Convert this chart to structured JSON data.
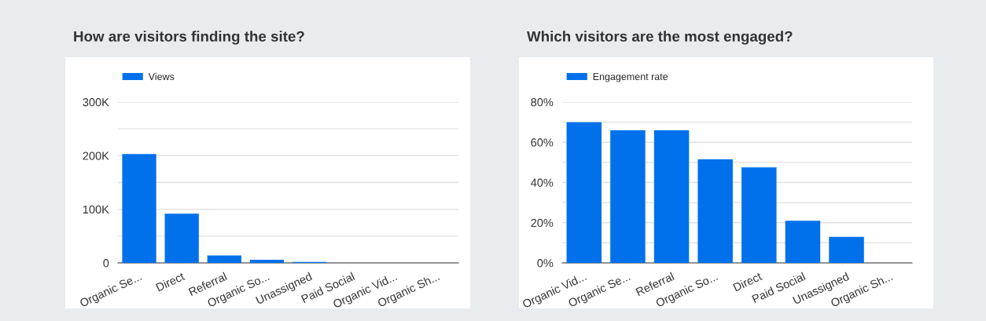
{
  "chart_data": [
    {
      "type": "bar",
      "title": "How are visitors finding the site?",
      "categories": [
        "Organic Se...",
        "Direct",
        "Referral",
        "Organic So...",
        "Unassigned",
        "Paid Social",
        "Organic Vid...",
        "Organic Sh..."
      ],
      "series": [
        {
          "name": "Views",
          "color": "#0071eb",
          "values": [
            203000,
            92000,
            14000,
            6000,
            2000,
            0,
            0,
            0
          ]
        }
      ],
      "ylim": [
        0,
        300000
      ],
      "yticks": [
        {
          "value": 0,
          "label": "0"
        },
        {
          "value": 50000,
          "label": null
        },
        {
          "value": 100000,
          "label": "100K"
        },
        {
          "value": 150000,
          "label": null
        },
        {
          "value": 200000,
          "label": "200K"
        },
        {
          "value": 250000,
          "label": null
        },
        {
          "value": 300000,
          "label": "300K"
        }
      ],
      "grid": "y",
      "legend": "top left"
    },
    {
      "type": "bar",
      "title": "Which visitors are the most engaged?",
      "categories": [
        "Organic Vid...",
        "Organic Se...",
        "Referral",
        "Organic So...",
        "Direct",
        "Paid Social",
        "Unassigned",
        "Organic Sh..."
      ],
      "series": [
        {
          "name": "Engagement rate",
          "color": "#0071eb",
          "values": [
            70,
            66,
            66,
            51.5,
            47.5,
            21,
            13,
            0
          ]
        }
      ],
      "ylim": [
        0,
        80
      ],
      "yticks": [
        {
          "value": 0,
          "label": "0%"
        },
        {
          "value": 10,
          "label": null
        },
        {
          "value": 20,
          "label": "20%"
        },
        {
          "value": 30,
          "label": null
        },
        {
          "value": 40,
          "label": "40%"
        },
        {
          "value": 50,
          "label": null
        },
        {
          "value": 60,
          "label": "60%"
        },
        {
          "value": 70,
          "label": null
        },
        {
          "value": 80,
          "label": "80%"
        }
      ],
      "grid": "y",
      "legend": "top left"
    }
  ]
}
